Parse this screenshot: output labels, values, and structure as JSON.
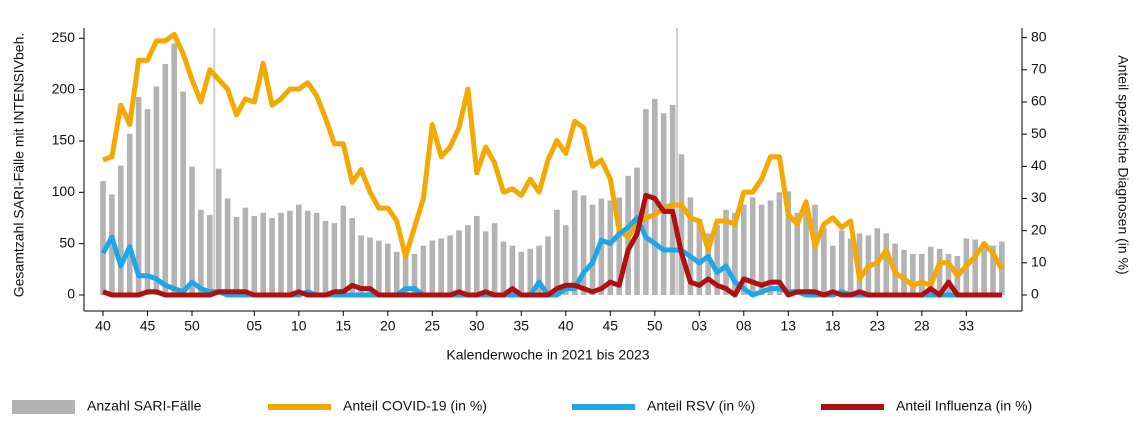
{
  "chart_data": {
    "type": "combo",
    "xlabel": "Kalenderwoche in 2021 bis 2023",
    "ylabel": "Gesamtzahl SARI-Fälle mit INTENSIVbeh.",
    "y2label": "Anteil spezifische Diagnosen (in %)",
    "categories": [
      "40",
      null,
      null,
      null,
      null,
      "45",
      null,
      null,
      null,
      null,
      "50",
      null,
      null,
      null,
      null,
      null,
      null,
      "05",
      null,
      null,
      null,
      null,
      "10",
      null,
      null,
      null,
      null,
      "15",
      null,
      null,
      null,
      null,
      "20",
      null,
      null,
      null,
      null,
      "25",
      null,
      null,
      null,
      null,
      "30",
      null,
      null,
      null,
      null,
      "35",
      null,
      null,
      null,
      null,
      "40",
      null,
      null,
      null,
      null,
      "45",
      null,
      null,
      null,
      null,
      "50",
      null,
      null,
      null,
      null,
      "03",
      null,
      null,
      null,
      null,
      "08",
      null,
      null,
      null,
      null,
      "13",
      null,
      null,
      null,
      null,
      "18",
      null,
      null,
      null,
      null,
      "23",
      null,
      null,
      null,
      null,
      "28",
      null,
      null,
      null,
      null,
      "33",
      null,
      null,
      null,
      null
    ],
    "series": [
      {
        "name": "Anzahl SARI-Fälle",
        "type": "bar",
        "color": "#b3b3b3",
        "values": [
          111,
          98,
          126,
          157,
          193,
          181,
          203,
          225,
          245,
          198,
          125,
          83,
          78,
          123,
          94,
          76,
          85,
          77,
          80,
          75,
          80,
          82,
          88,
          82,
          80,
          72,
          70,
          87,
          75,
          58,
          56,
          53,
          50,
          42,
          45,
          40,
          48,
          53,
          55,
          58,
          63,
          68,
          77,
          62,
          70,
          52,
          48,
          42,
          45,
          48,
          57,
          83,
          68,
          102,
          97,
          88,
          94,
          92,
          95,
          116,
          124,
          181,
          191,
          177,
          185,
          137,
          95,
          74,
          60,
          68,
          83,
          80,
          88,
          95,
          88,
          92,
          100,
          101,
          80,
          88,
          88,
          65,
          48,
          63,
          55,
          60,
          58,
          65,
          60,
          50,
          44,
          40,
          40,
          47,
          45,
          40,
          38,
          55,
          54,
          50,
          48,
          52
        ]
      },
      {
        "name": "Anteil COVID-19 (in %)",
        "type": "line",
        "axis": "y2",
        "color": "#f5a800",
        "values": [
          42,
          43,
          59,
          53,
          73,
          73,
          79,
          79,
          81,
          75,
          67,
          60,
          70,
          67,
          64,
          56,
          61,
          60,
          72,
          59,
          61,
          64,
          64,
          66,
          62,
          55,
          47,
          47,
          35,
          39,
          32,
          27,
          27,
          23,
          12,
          21,
          30,
          53,
          43,
          46,
          52,
          64,
          38,
          46,
          41,
          32,
          33,
          31,
          36,
          32,
          42,
          48,
          44,
          54,
          52,
          40,
          42,
          36,
          20,
          18,
          22,
          24,
          25,
          27,
          28,
          28,
          24,
          23,
          14,
          23,
          23,
          22,
          32,
          32,
          36,
          43,
          43,
          25,
          22,
          29,
          15,
          22,
          24,
          21,
          23,
          5,
          9,
          10,
          14,
          7,
          5,
          3,
          4,
          3,
          10,
          10,
          6,
          9,
          12,
          16,
          13,
          8
        ]
      },
      {
        "name": "Anteil RSV (in %)",
        "type": "line",
        "axis": "y2",
        "color": "#1ea7e8",
        "values": [
          13,
          18,
          9,
          15,
          6,
          6,
          5,
          3,
          2,
          1,
          4,
          2,
          1,
          1,
          0,
          0,
          0,
          0,
          0,
          0,
          0,
          0,
          0,
          1,
          0,
          0,
          0,
          0,
          0,
          0,
          0,
          0,
          0,
          0,
          2,
          2,
          0,
          0,
          0,
          0,
          0,
          0,
          0,
          0,
          0,
          0,
          0,
          0,
          0,
          4,
          0,
          0,
          2,
          2,
          7,
          10,
          17,
          16,
          19,
          21,
          24,
          18,
          16,
          14,
          14,
          14,
          12,
          10,
          12,
          7,
          9,
          4,
          2,
          0,
          1,
          2,
          2,
          1,
          1,
          0,
          0,
          0,
          0,
          1,
          0,
          0,
          0,
          0,
          0,
          0,
          0,
          0,
          0,
          0,
          0,
          0,
          0,
          0,
          0,
          0,
          0,
          0
        ]
      },
      {
        "name": "Anteil Influenza (in %)",
        "type": "line",
        "axis": "y2",
        "color": "#b01010",
        "values": [
          1,
          0,
          0,
          0,
          0,
          1,
          1,
          0,
          0,
          0,
          0,
          0,
          0,
          1,
          1,
          1,
          1,
          0,
          0,
          0,
          0,
          0,
          1,
          0,
          0,
          0,
          1,
          1,
          3,
          2,
          2,
          0,
          0,
          0,
          0,
          0,
          0,
          0,
          0,
          0,
          1,
          0,
          0,
          1,
          0,
          0,
          2,
          0,
          0,
          0,
          0,
          2,
          3,
          3,
          2,
          1,
          2,
          4,
          3,
          14,
          19,
          31,
          30,
          26,
          26,
          13,
          4,
          3,
          5,
          3,
          2,
          0,
          5,
          4,
          3,
          4,
          4,
          0,
          1,
          1,
          1,
          0,
          1,
          0,
          0,
          1,
          0,
          0,
          0,
          0,
          0,
          0,
          0,
          2,
          0,
          4,
          0,
          0,
          0,
          0,
          0,
          0
        ]
      }
    ],
    "ylim": [
      0,
      260
    ],
    "yticks": [
      0,
      50,
      100,
      150,
      200,
      250
    ],
    "y2lim": [
      0,
      83
    ],
    "y2ticks": [
      0,
      10,
      20,
      30,
      40,
      50,
      60,
      70,
      80
    ]
  }
}
